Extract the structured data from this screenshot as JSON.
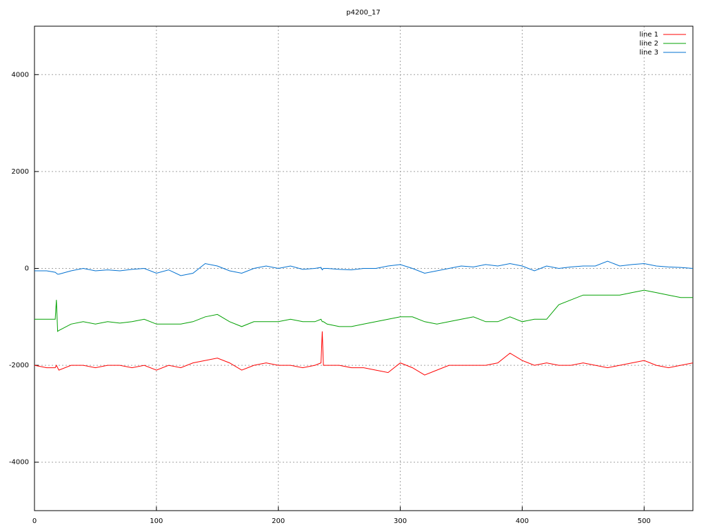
{
  "chart_data": {
    "type": "line",
    "title": "p4200_17",
    "x": [
      0,
      10,
      17,
      18,
      19,
      20,
      30,
      40,
      50,
      60,
      70,
      80,
      90,
      100,
      110,
      120,
      130,
      140,
      150,
      160,
      170,
      180,
      190,
      200,
      210,
      220,
      230,
      235,
      236,
      237,
      240,
      250,
      260,
      270,
      280,
      290,
      300,
      310,
      320,
      330,
      340,
      350,
      360,
      370,
      380,
      390,
      400,
      410,
      420,
      430,
      440,
      450,
      460,
      470,
      480,
      490,
      500,
      510,
      520,
      530,
      540
    ],
    "series": [
      {
        "name": "line 1",
        "color": "#ff0000",
        "values": [
          -2000,
          -2050,
          -2050,
          -2000,
          -2050,
          -2100,
          -2000,
          -2000,
          -2050,
          -2000,
          -2000,
          -2050,
          -2000,
          -2100,
          -2000,
          -2050,
          -1950,
          -1900,
          -1850,
          -1950,
          -2100,
          -2000,
          -1950,
          -2000,
          -2000,
          -2050,
          -2000,
          -1950,
          -1300,
          -2000,
          -2000,
          -2000,
          -2050,
          -2050,
          -2100,
          -2150,
          -1950,
          -2050,
          -2200,
          -2100,
          -2000,
          -2000,
          -2000,
          -2000,
          -1950,
          -1750,
          -1900,
          -2000,
          -1950,
          -2000,
          -2000,
          -1950,
          -2000,
          -2050,
          -2000,
          -1950,
          -1900,
          -2000,
          -2050,
          -2000,
          -1950
        ]
      },
      {
        "name": "line 2",
        "color": "#00a000",
        "values": [
          -1050,
          -1050,
          -1050,
          -650,
          -1300,
          -1280,
          -1150,
          -1100,
          -1150,
          -1100,
          -1130,
          -1100,
          -1050,
          -1150,
          -1150,
          -1150,
          -1100,
          -1000,
          -950,
          -1100,
          -1200,
          -1100,
          -1100,
          -1100,
          -1050,
          -1100,
          -1100,
          -1050,
          -1100,
          -1100,
          -1150,
          -1200,
          -1200,
          -1150,
          -1100,
          -1050,
          -1000,
          -1000,
          -1100,
          -1150,
          -1100,
          -1050,
          -1000,
          -1100,
          -1100,
          -1000,
          -1100,
          -1050,
          -1050,
          -750,
          -650,
          -550,
          -550,
          -550,
          -550,
          -500,
          -450,
          -500,
          -550,
          -600,
          -600
        ]
      },
      {
        "name": "line 3",
        "color": "#0070d0",
        "values": [
          -50,
          -50,
          -80,
          -100,
          -120,
          -120,
          -50,
          0,
          -50,
          -30,
          -50,
          -20,
          0,
          -100,
          -30,
          -150,
          -100,
          100,
          50,
          -50,
          -100,
          0,
          50,
          0,
          50,
          -20,
          0,
          20,
          -30,
          0,
          0,
          -20,
          -30,
          0,
          0,
          50,
          80,
          0,
          -100,
          -50,
          0,
          50,
          30,
          80,
          50,
          100,
          50,
          -50,
          50,
          0,
          30,
          50,
          50,
          150,
          50,
          80,
          100,
          50,
          30,
          20,
          0
        ]
      }
    ],
    "xlim": [
      0,
      540
    ],
    "xticks": [
      0,
      100,
      200,
      300,
      400,
      500
    ],
    "ylim": [
      -5000,
      5000
    ],
    "yticks": [
      -4000,
      -2000,
      0,
      2000,
      4000
    ],
    "grid": true,
    "legend": "top-right"
  }
}
